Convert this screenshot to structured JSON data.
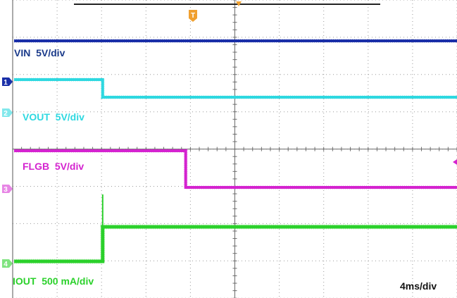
{
  "chart_data": {
    "type": "line",
    "title": "",
    "x_unit": "ms",
    "x_range": [
      0,
      40
    ],
    "timebase_label": "4ms/div",
    "trigger_marker": "T",
    "grid": true,
    "series": [
      {
        "name": "VIN  5V/div",
        "channel": "1",
        "color": "#1a2fa8",
        "points": [
          [
            0,
            0
          ],
          [
            40,
            0
          ]
        ]
      },
      {
        "name": "VOUT  5V/div",
        "channel": "2",
        "color": "#2ed8e0",
        "points": [
          [
            0,
            1
          ],
          [
            8,
            1
          ],
          [
            8,
            0
          ],
          [
            40,
            0
          ]
        ]
      },
      {
        "name": "FLGB  5V/div",
        "channel": "3",
        "color": "#d423cf",
        "points": [
          [
            0,
            1
          ],
          [
            15.5,
            1
          ],
          [
            15.5,
            0
          ],
          [
            40,
            0
          ]
        ]
      },
      {
        "name": "IOUT  500 mA/div",
        "channel": "4",
        "color": "#2bd12b",
        "points": [
          [
            0,
            0
          ],
          [
            8,
            0
          ],
          [
            8,
            1
          ],
          [
            40,
            1
          ]
        ]
      }
    ]
  },
  "colors": {
    "trigger": "#f0a030",
    "label_blue": "#1a3a8a",
    "label_cyan": "#2ed8e0",
    "label_magenta": "#d423cf",
    "label_green": "#2bd12b",
    "grid": "#9a9a9a"
  }
}
